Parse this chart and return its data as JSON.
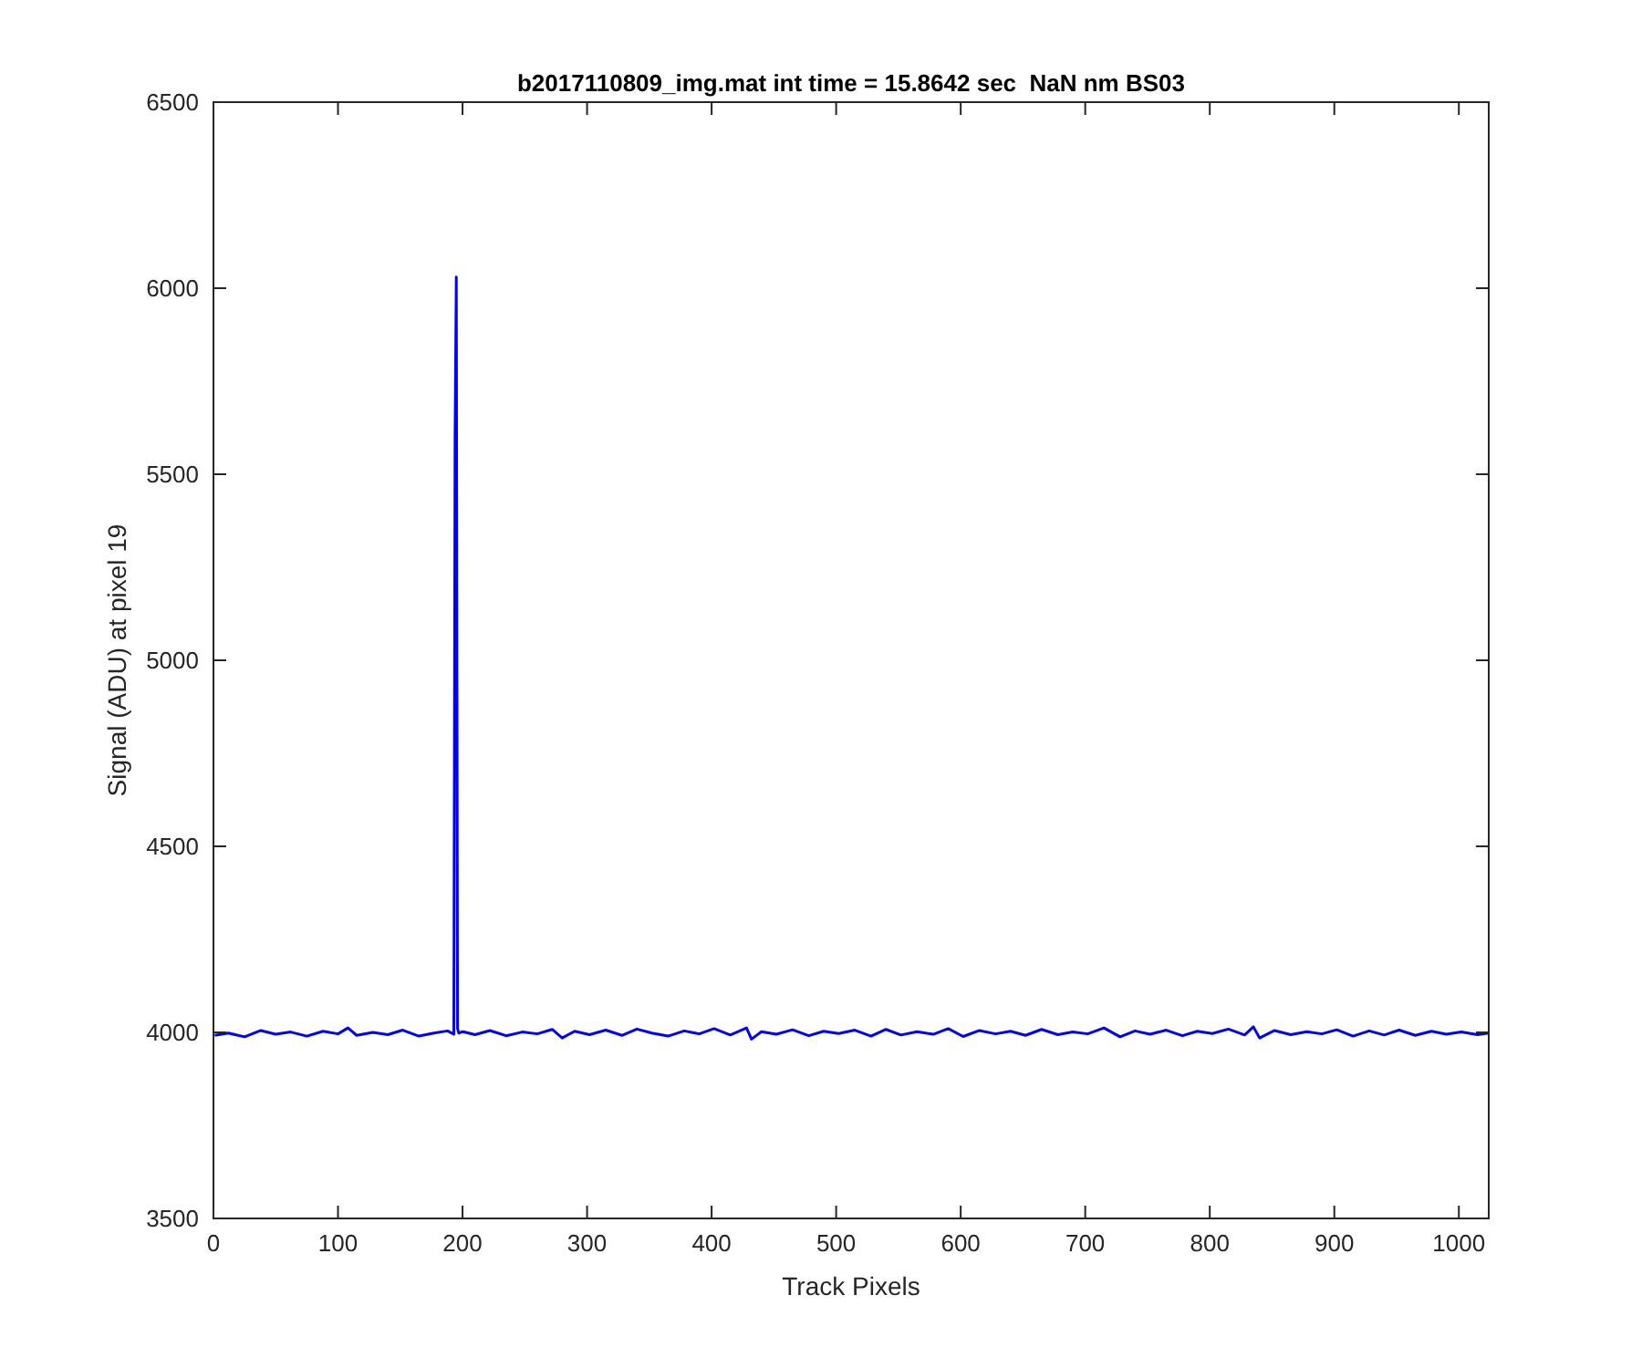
{
  "chart_data": {
    "type": "line",
    "title": "b2017110809_img.mat int time = 15.8642 sec  NaN nm BS03",
    "xlabel": "Track Pixels",
    "ylabel": "Signal (ADU) at pixel 19",
    "x": [
      1,
      12,
      25,
      38,
      50,
      62,
      75,
      88,
      100,
      108,
      115,
      128,
      140,
      152,
      165,
      178,
      188,
      193,
      194,
      195,
      196,
      197,
      200,
      210,
      222,
      235,
      248,
      260,
      272,
      280,
      290,
      302,
      315,
      328,
      340,
      352,
      365,
      378,
      390,
      402,
      415,
      428,
      432,
      440,
      452,
      465,
      478,
      490,
      502,
      515,
      528,
      540,
      552,
      565,
      578,
      590,
      602,
      615,
      628,
      640,
      652,
      665,
      678,
      690,
      702,
      715,
      728,
      740,
      752,
      765,
      778,
      790,
      802,
      815,
      828,
      835,
      840,
      852,
      865,
      878,
      890,
      902,
      915,
      928,
      940,
      952,
      965,
      978,
      990,
      1002,
      1015,
      1024
    ],
    "series": [
      {
        "color": "#0000ff",
        "values": [
          3992,
          3998,
          3988,
          4005,
          3995,
          4001,
          3990,
          4003,
          3996,
          4012,
          3992,
          4000,
          3994,
          4006,
          3990,
          3999,
          4004,
          3995,
          5600,
          6030,
          4010,
          3998,
          4002,
          3994,
          4005,
          3991,
          4001,
          3996,
          4008,
          3985,
          4003,
          3994,
          4006,
          3992,
          4009,
          3998,
          3990,
          4004,
          3996,
          4010,
          3993,
          4012,
          3982,
          4002,
          3995,
          4007,
          3991,
          4003,
          3997,
          4006,
          3990,
          4008,
          3993,
          4002,
          3995,
          4010,
          3989,
          4005,
          3996,
          4003,
          3992,
          4008,
          3994,
          4001,
          3996,
          4012,
          3988,
          4004,
          3995,
          4006,
          3991,
          4003,
          3997,
          4009,
          3993,
          4015,
          3985,
          4005,
          3994,
          4002,
          3996,
          4007,
          3990,
          4004,
          3993,
          4006,
          3992,
          4003,
          3995,
          4001,
          3994,
          3998
        ]
      }
    ],
    "xlim": [
      0,
      1024
    ],
    "ylim": [
      3500,
      6500
    ],
    "xticks": [
      0,
      100,
      200,
      300,
      400,
      500,
      600,
      700,
      800,
      900,
      1000
    ],
    "yticks": [
      3500,
      4000,
      4500,
      5000,
      5500,
      6000,
      6500
    ],
    "grid": false,
    "marker": "none",
    "line_style": "solid"
  }
}
